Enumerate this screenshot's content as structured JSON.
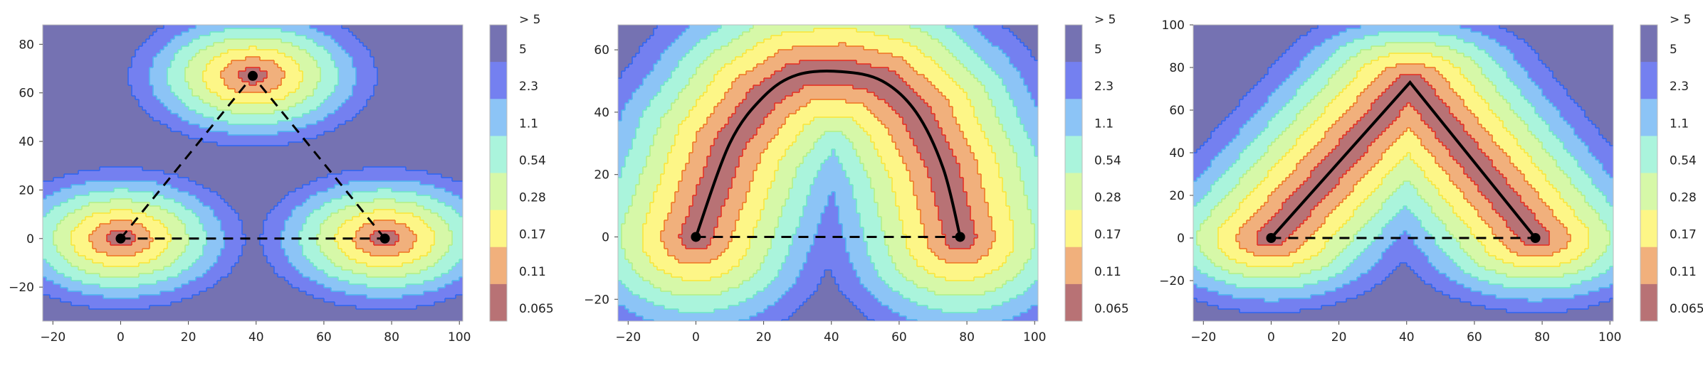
{
  "chart_data": [
    {
      "type": "heatmap",
      "title": "",
      "xlabel": "",
      "ylabel": "",
      "xlim": [
        -23,
        101
      ],
      "ylim": [
        -34,
        88
      ],
      "xticks": [
        -20,
        0,
        20,
        40,
        60,
        80,
        100
      ],
      "xtick_labels": [
        "−20",
        "0",
        "20",
        "40",
        "60",
        "80",
        "100"
      ],
      "yticks": [
        -20,
        0,
        20,
        40,
        60,
        80
      ],
      "ytick_labels": [
        "−20",
        "0",
        "20",
        "40",
        "60",
        "80"
      ],
      "grid": false,
      "field_sources": [
        [
          0,
          0
        ],
        [
          78,
          0
        ],
        [
          39,
          67
        ]
      ],
      "points": [
        {
          "x": 0,
          "y": 0
        },
        {
          "x": 78,
          "y": 0
        },
        {
          "x": 39,
          "y": 67
        }
      ],
      "dashed_segments": [
        [
          {
            "x": 0,
            "y": 0
          },
          {
            "x": 78,
            "y": 0
          }
        ],
        [
          {
            "x": 0,
            "y": 0
          },
          {
            "x": 39,
            "y": 67
          }
        ],
        [
          {
            "x": 78,
            "y": 0
          },
          {
            "x": 39,
            "y": 67
          }
        ]
      ],
      "solid_path": []
    },
    {
      "type": "heatmap",
      "title": "",
      "xlabel": "",
      "ylabel": "",
      "xlim": [
        -23,
        101
      ],
      "ylim": [
        -27,
        68
      ],
      "xticks": [
        -20,
        0,
        20,
        40,
        60,
        80,
        100
      ],
      "xtick_labels": [
        "−20",
        "0",
        "20",
        "40",
        "60",
        "80",
        "100"
      ],
      "yticks": [
        -20,
        0,
        20,
        40,
        60
      ],
      "ytick_labels": [
        "−20",
        "0",
        "20",
        "40",
        "60"
      ],
      "grid": false,
      "field_sources": "curve",
      "points": [
        {
          "x": 0,
          "y": 0
        },
        {
          "x": 78,
          "y": 0
        }
      ],
      "dashed_segments": [
        [
          {
            "x": 0,
            "y": 0
          },
          {
            "x": 78,
            "y": 0
          }
        ]
      ],
      "solid_path": [
        {
          "x": 0,
          "y": 0
        },
        {
          "x": 10,
          "y": 30
        },
        {
          "x": 20,
          "y": 45
        },
        {
          "x": 30,
          "y": 52
        },
        {
          "x": 43,
          "y": 53
        },
        {
          "x": 55,
          "y": 50
        },
        {
          "x": 65,
          "y": 40
        },
        {
          "x": 73,
          "y": 22
        },
        {
          "x": 78,
          "y": 0
        }
      ]
    },
    {
      "type": "heatmap",
      "title": "",
      "xlabel": "",
      "ylabel": "",
      "xlim": [
        -23,
        101
      ],
      "ylim": [
        -39,
        100
      ],
      "xticks": [
        -20,
        0,
        20,
        40,
        60,
        80,
        100
      ],
      "xtick_labels": [
        "−20",
        "0",
        "20",
        "40",
        "60",
        "80",
        "100"
      ],
      "yticks": [
        -20,
        0,
        20,
        40,
        60,
        80,
        100
      ],
      "ytick_labels": [
        "−20",
        "0",
        "20",
        "40",
        "60",
        "80",
        "100"
      ],
      "grid": false,
      "field_sources": "polyline",
      "points": [
        {
          "x": 0,
          "y": 0
        },
        {
          "x": 78,
          "y": 0
        }
      ],
      "dashed_segments": [
        [
          {
            "x": 0,
            "y": 0
          },
          {
            "x": 78,
            "y": 0
          }
        ]
      ],
      "solid_path": [
        {
          "x": 0,
          "y": 0
        },
        {
          "x": 41,
          "y": 73
        },
        {
          "x": 78,
          "y": 0
        }
      ]
    }
  ],
  "colorbar": {
    "labels": [
      "> 5",
      "5",
      "2.3",
      "1.1",
      "0.54",
      "0.28",
      "0.17",
      "0.11",
      "0.065"
    ],
    "band_colors": [
      "#7572b2",
      "#7480f0",
      "#8cc4f6",
      "#aaf4dc",
      "#d6f8a8",
      "#fdf687",
      "#f1b07c",
      "#b87275"
    ],
    "band_edge_colors": [
      "#1a10d8",
      "#3066f0",
      "#50b4f0",
      "#70e8c8",
      "#b4f088",
      "#fae63c",
      "#f07828",
      "#e43226"
    ]
  },
  "fill_alpha": 1.0
}
